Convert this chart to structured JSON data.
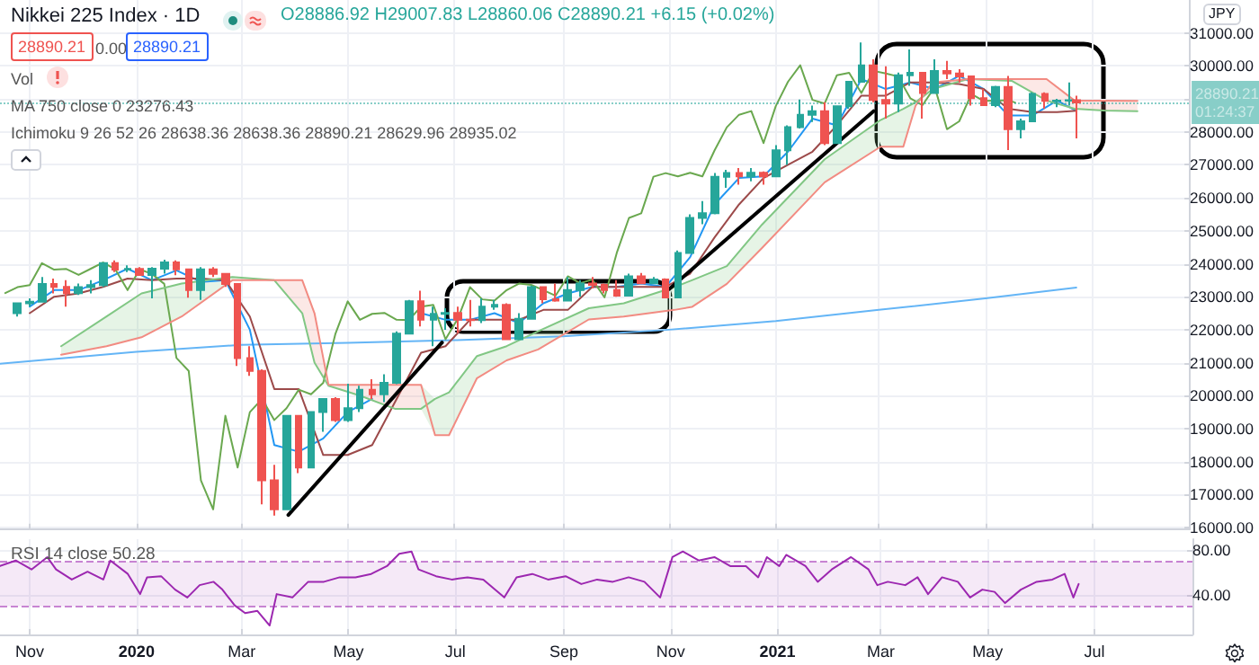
{
  "chart_data": [
    {
      "type": "candlestick",
      "title": "Nikkei 225 Index · 1D",
      "ylabel": "JPY",
      "xlim": [
        "2019-10-15",
        "2021-08-26"
      ],
      "ylim": [
        15950,
        32000
      ],
      "tick_labels": "y",
      "grid": true,
      "xticks": [
        {
          "value": "2019-11-01",
          "label": null
        },
        {
          "value": "2020-01-01",
          "label": null
        },
        {
          "value": "2020-03-01",
          "label": null
        },
        {
          "value": "2020-05-01",
          "label": null
        },
        {
          "value": "2020-07-01",
          "label": null
        },
        {
          "value": "2020-09-01",
          "label": null
        },
        {
          "value": "2020-11-01",
          "label": null
        },
        {
          "value": "2021-01-01",
          "label": null
        },
        {
          "value": "2021-03-01",
          "label": null
        },
        {
          "value": "2021-05-01",
          "label": null
        },
        {
          "value": "2021-07-01",
          "label": null
        }
      ],
      "yticks": [
        {
          "value": 16000,
          "label": "16000.00"
        },
        {
          "value": 17000,
          "label": "17000.00"
        },
        {
          "value": 18000,
          "label": "18000.00"
        },
        {
          "value": 19000,
          "label": "19000.00"
        },
        {
          "value": 20000,
          "label": "20000.00"
        },
        {
          "value": 21000,
          "label": "21000.00"
        },
        {
          "value": 22000,
          "label": "22000.00"
        },
        {
          "value": 23000,
          "label": "23000.00"
        },
        {
          "value": 24000,
          "label": "24000.00"
        },
        {
          "value": 25000,
          "label": "25000.00"
        },
        {
          "value": 26000,
          "label": "26000.00"
        },
        {
          "value": 27000,
          "label": "27000.00"
        },
        {
          "value": 28000,
          "label": "28000.00"
        },
        {
          "value": 29000,
          "label": null
        },
        {
          "value": 30000,
          "label": "30000.00"
        },
        {
          "value": 31000,
          "label": "31000.00"
        }
      ],
      "annotations": [
        "O28886.92 H29007.83 L28860.06 C28890.21 +6.15 (+0.02%)",
        "28890.21",
        "0.00",
        "28890.21",
        "Vol",
        "MA 750 close 0 23276.43",
        "Ichimoku 9 26 52 26 28638.36 28638.36 28890.21 28629.96 28935.02",
        "01:24:37"
      ],
      "ref_lines": [
        {
          "axis": "y",
          "value": 28890.21,
          "label": "28890.21",
          "color": "#26a69a",
          "line_style": "dotted"
        }
      ],
      "x": [
        "2019-10-25",
        "2019-11-01",
        "2019-11-08",
        "2019-11-15",
        "2019-11-22",
        "2019-11-29",
        "2019-12-06",
        "2019-12-13",
        "2019-12-20",
        "2019-12-27",
        "2020-01-03",
        "2020-01-10",
        "2020-01-17",
        "2020-01-24",
        "2020-01-31",
        "2020-02-07",
        "2020-02-14",
        "2020-02-21",
        "2020-02-28",
        "2020-03-06",
        "2020-03-13",
        "2020-03-20",
        "2020-03-27",
        "2020-04-03",
        "2020-04-10",
        "2020-04-17",
        "2020-04-24",
        "2020-05-01",
        "2020-05-08",
        "2020-05-15",
        "2020-05-22",
        "2020-05-29",
        "2020-06-05",
        "2020-06-12",
        "2020-06-19",
        "2020-06-26",
        "2020-07-03",
        "2020-07-10",
        "2020-07-17",
        "2020-07-24",
        "2020-07-31",
        "2020-08-07",
        "2020-08-14",
        "2020-08-21",
        "2020-08-28",
        "2020-09-04",
        "2020-09-11",
        "2020-09-18",
        "2020-09-25",
        "2020-10-02",
        "2020-10-09",
        "2020-10-16",
        "2020-10-23",
        "2020-10-30",
        "2020-11-06",
        "2020-11-13",
        "2020-11-20",
        "2020-11-27",
        "2020-12-04",
        "2020-12-11",
        "2020-12-18",
        "2020-12-25",
        "2021-01-01",
        "2021-01-08",
        "2021-01-15",
        "2021-01-22",
        "2021-01-29",
        "2021-02-05",
        "2021-02-12",
        "2021-02-19",
        "2021-02-26",
        "2021-03-05",
        "2021-03-12",
        "2021-03-19",
        "2021-03-26",
        "2021-04-02",
        "2021-04-09",
        "2021-04-16",
        "2021-04-23",
        "2021-04-30",
        "2021-05-07",
        "2021-05-14",
        "2021-05-21",
        "2021-05-28",
        "2021-06-04",
        "2021-06-11",
        "2021-06-18",
        "2021-06-22"
      ],
      "ohlc": [
        [
          22500,
          22800,
          22400,
          22800
        ],
        [
          22800,
          22950,
          22700,
          22850
        ],
        [
          22850,
          23600,
          22850,
          23390
        ],
        [
          23390,
          23550,
          23100,
          23300
        ],
        [
          23300,
          23500,
          22700,
          23110
        ],
        [
          23110,
          23400,
          23050,
          23290
        ],
        [
          23290,
          23500,
          23100,
          23350
        ],
        [
          23350,
          24050,
          23300,
          24020
        ],
        [
          24020,
          24100,
          23750,
          23820
        ],
        [
          23820,
          23950,
          23750,
          23840
        ],
        [
          23840,
          23900,
          23650,
          23660
        ],
        [
          23660,
          23900,
          22950,
          23850
        ],
        [
          23850,
          24120,
          23700,
          24040
        ],
        [
          24040,
          24100,
          23650,
          23830
        ],
        [
          23830,
          23850,
          22970,
          23200
        ],
        [
          23200,
          23900,
          22900,
          23830
        ],
        [
          23830,
          23900,
          23600,
          23690
        ],
        [
          23690,
          23700,
          23300,
          23390
        ],
        [
          23390,
          23400,
          20900,
          21140
        ],
        [
          21140,
          21500,
          20600,
          20750
        ],
        [
          20750,
          20800,
          16700,
          17430
        ],
        [
          17430,
          17900,
          16360,
          16550
        ],
        [
          16550,
          19400,
          16550,
          19390
        ],
        [
          19390,
          19400,
          17650,
          17820
        ],
        [
          17820,
          19500,
          17820,
          19500
        ],
        [
          19500,
          19900,
          18900,
          19900
        ],
        [
          19900,
          19950,
          19200,
          19260
        ],
        [
          19260,
          20360,
          19200,
          19620
        ],
        [
          19620,
          20300,
          19500,
          20180
        ],
        [
          20180,
          20500,
          19900,
          20040
        ],
        [
          20040,
          20650,
          19800,
          20390
        ],
        [
          20390,
          21950,
          20350,
          21880
        ],
        [
          21880,
          22900,
          21880,
          22860
        ],
        [
          22860,
          23180,
          22100,
          22300
        ],
        [
          22300,
          22700,
          21500,
          22480
        ],
        [
          22480,
          22650,
          22000,
          22510
        ],
        [
          22510,
          22700,
          21900,
          22300
        ],
        [
          22300,
          22900,
          22100,
          22290
        ],
        [
          22290,
          22950,
          22200,
          22700
        ],
        [
          22700,
          22900,
          22600,
          22750
        ],
        [
          22750,
          22800,
          21700,
          21710
        ],
        [
          21710,
          22500,
          21700,
          22330
        ],
        [
          22330,
          23340,
          22300,
          23290
        ],
        [
          23290,
          23300,
          22800,
          22920
        ],
        [
          22920,
          23400,
          22850,
          22880
        ],
        [
          22880,
          23600,
          22880,
          23200
        ],
        [
          23200,
          23500,
          23000,
          23400
        ],
        [
          23400,
          23600,
          23250,
          23360
        ],
        [
          23360,
          23400,
          23100,
          23200
        ],
        [
          23200,
          23500,
          23000,
          23030
        ],
        [
          23030,
          23700,
          23030,
          23620
        ],
        [
          23620,
          23720,
          23400,
          23410
        ],
        [
          23410,
          23600,
          23400,
          23520
        ],
        [
          23520,
          23560,
          22950,
          22980
        ],
        [
          22980,
          24400,
          22950,
          24330
        ],
        [
          24330,
          25500,
          24300,
          25390
        ],
        [
          25390,
          25900,
          25200,
          25530
        ],
        [
          25530,
          26750,
          25500,
          26640
        ],
        [
          26640,
          26850,
          26300,
          26750
        ],
        [
          26750,
          26900,
          26400,
          26650
        ],
        [
          26650,
          26900,
          26500,
          26760
        ],
        [
          26760,
          26800,
          26400,
          26650
        ],
        [
          26650,
          27600,
          26650,
          27440
        ],
        [
          27440,
          28200,
          27000,
          28140
        ],
        [
          28140,
          28980,
          28100,
          28520
        ],
        [
          28520,
          28800,
          28300,
          28630
        ],
        [
          28630,
          28900,
          27600,
          27660
        ],
        [
          27660,
          28800,
          27660,
          28780
        ],
        [
          28780,
          29550,
          28700,
          29520
        ],
        [
          29520,
          30710,
          29500,
          30020
        ],
        [
          30020,
          30200,
          28900,
          28970
        ],
        [
          28970,
          29990,
          28400,
          28860
        ],
        [
          28860,
          29800,
          28600,
          29720
        ],
        [
          29720,
          30500,
          29400,
          29790
        ],
        [
          29790,
          29800,
          28400,
          29180
        ],
        [
          29180,
          30200,
          29150,
          29850
        ],
        [
          29850,
          30150,
          29600,
          29770
        ],
        [
          29770,
          29900,
          29500,
          29680
        ],
        [
          29680,
          29700,
          28800,
          29020
        ],
        [
          29020,
          29300,
          28800,
          28810
        ],
        [
          28810,
          29400,
          28750,
          29360
        ],
        [
          29360,
          29700,
          27450,
          28080
        ],
        [
          28080,
          28400,
          27800,
          28320
        ],
        [
          28320,
          29200,
          28300,
          29150
        ],
        [
          29150,
          29200,
          28700,
          28940
        ],
        [
          28940,
          29000,
          28750,
          28950
        ],
        [
          28950,
          29500,
          28800,
          28960
        ],
        [
          28960,
          29100,
          27800,
          28890.21
        ]
      ],
      "series": [
        {
          "type": "line",
          "color": "#64b5f6",
          "x": [
            "2019-10-15",
            "2020-01-01",
            "2020-03-01",
            "2020-05-01",
            "2020-07-01",
            "2020-09-01",
            "2020-11-01",
            "2021-01-01",
            "2021-03-01",
            "2021-05-01",
            "2021-06-22"
          ],
          "values": [
            20970,
            21330,
            21540,
            21600,
            21680,
            21800,
            22000,
            22260,
            22600,
            22950,
            23280
          ]
        },
        {
          "type": "line",
          "color": "#2196f3",
          "x": [
            "2019-11-01",
            "2019-11-15",
            "2019-11-29",
            "2019-12-13",
            "2019-12-27",
            "2020-01-10",
            "2020-01-24",
            "2020-02-07",
            "2020-02-21",
            "2020-03-06",
            "2020-03-20",
            "2020-04-03",
            "2020-04-17",
            "2020-05-01",
            "2020-05-15",
            "2020-05-29",
            "2020-06-12",
            "2020-06-26",
            "2020-07-10",
            "2020-07-24",
            "2020-08-07",
            "2020-08-21",
            "2020-09-04",
            "2020-09-18",
            "2020-10-02",
            "2020-10-16",
            "2020-10-30",
            "2020-11-13",
            "2020-11-27",
            "2020-12-11",
            "2020-12-25",
            "2021-01-08",
            "2021-01-22",
            "2021-02-05",
            "2021-02-19",
            "2021-03-05",
            "2021-03-19",
            "2021-04-02",
            "2021-04-16",
            "2021-04-30",
            "2021-05-14",
            "2021-05-28",
            "2021-06-11",
            "2021-06-22"
          ],
          "values": [
            22700,
            23200,
            23200,
            23500,
            23850,
            23500,
            23800,
            23450,
            23500,
            22000,
            18500,
            18300,
            18700,
            19500,
            19900,
            null,
            22500,
            22300,
            22300,
            22500,
            22200,
            22800,
            23100,
            23300,
            23300,
            23400,
            23300,
            24200,
            25800,
            26600,
            26650,
            27400,
            28400,
            28200,
            29600,
            29300,
            29500,
            29300,
            29700,
            29300,
            28500,
            28500,
            28950,
            28640
          ]
        },
        {
          "type": "line",
          "color": "#9c4a4a",
          "x": [
            "2019-11-01",
            "2019-11-15",
            "2019-11-29",
            "2019-12-13",
            "2019-12-27",
            "2020-01-10",
            "2020-01-24",
            "2020-02-07",
            "2020-02-21",
            "2020-03-06",
            "2020-03-20",
            "2020-04-03",
            "2020-04-17",
            "2020-05-01",
            "2020-05-15",
            "2020-05-29",
            "2020-06-12",
            "2020-06-26",
            "2020-07-10",
            "2020-07-24",
            "2020-08-07",
            "2020-08-21",
            "2020-09-04",
            "2020-09-18",
            "2020-10-02",
            "2020-10-16",
            "2020-10-30",
            "2020-11-13",
            "2020-11-27",
            "2020-12-11",
            "2020-12-25",
            "2021-01-08",
            "2021-01-22",
            "2021-02-05",
            "2021-02-19",
            "2021-03-05",
            "2021-03-19",
            "2021-04-02",
            "2021-04-16",
            "2021-04-30",
            "2021-05-14",
            "2021-05-28",
            "2021-06-11",
            "2021-06-22"
          ],
          "values": [
            22500,
            23000,
            23100,
            23300,
            23550,
            23500,
            23550,
            23550,
            23500,
            22400,
            20200,
            20200,
            18200,
            18200,
            18500,
            19900,
            21300,
            21500,
            22300,
            22300,
            22300,
            22600,
            22600,
            23300,
            23300,
            23300,
            23300,
            23700,
            24800,
            25800,
            26600,
            27000,
            27400,
            28200,
            29100,
            29100,
            29500,
            29500,
            29450,
            29300,
            28700,
            28600,
            28600,
            28640
          ]
        },
        {
          "type": "line",
          "color": "#6aa84f",
          "x": [
            "2019-10-18",
            "2019-10-25",
            "2019-11-01",
            "2019-11-08",
            "2019-11-15",
            "2019-11-22",
            "2019-11-29",
            "2019-12-06",
            "2019-12-13",
            "2019-12-20",
            "2019-12-27",
            "2020-01-03",
            "2020-01-10",
            "2020-01-17",
            "2020-01-24",
            "2020-01-31",
            "2020-02-07",
            "2020-02-14",
            "2020-02-21",
            "2020-02-28",
            "2020-03-06",
            "2020-03-13",
            "2020-03-20",
            "2020-03-27",
            "2020-04-03",
            "2020-04-10",
            "2020-04-17",
            "2020-04-24",
            "2020-05-01",
            "2020-05-08",
            "2020-05-15",
            "2020-05-22",
            "2020-05-29",
            "2020-06-05",
            "2020-06-12",
            "2020-06-19",
            "2020-06-26",
            "2020-07-03",
            "2020-07-10",
            "2020-07-17",
            "2020-07-24",
            "2020-07-31",
            "2020-08-07",
            "2020-08-14",
            "2020-08-21",
            "2020-08-28",
            "2020-09-04",
            "2020-09-11",
            "2020-09-18",
            "2020-09-25",
            "2020-10-02",
            "2020-10-09",
            "2020-10-16",
            "2020-10-23",
            "2020-10-30",
            "2020-11-06",
            "2020-11-13",
            "2020-11-20",
            "2020-11-27",
            "2020-12-04",
            "2020-12-11",
            "2020-12-18",
            "2020-12-25",
            "2021-01-01",
            "2021-01-08",
            "2021-01-15",
            "2021-01-22",
            "2021-01-29",
            "2021-02-05",
            "2021-02-12",
            "2021-02-19",
            "2021-02-26",
            "2021-03-05",
            "2021-03-12",
            "2021-03-19",
            "2021-03-26",
            "2021-04-02",
            "2021-04-09",
            "2021-04-16",
            "2021-04-23",
            "2021-04-30",
            "2021-05-07",
            "2021-05-14",
            "2021-05-18"
          ],
          "values": [
            23110,
            23290,
            23350,
            24020,
            23820,
            23840,
            23660,
            23850,
            24040,
            23830,
            23200,
            23830,
            23690,
            23390,
            21140,
            20750,
            17430,
            16550,
            19390,
            17820,
            19500,
            19900,
            19260,
            19620,
            20180,
            20040,
            20390,
            21880,
            22860,
            22300,
            22480,
            22510,
            22300,
            22290,
            22700,
            22750,
            21710,
            22330,
            23290,
            22920,
            22880,
            23200,
            23400,
            23360,
            23200,
            23030,
            23620,
            23410,
            23520,
            22980,
            24330,
            25390,
            25530,
            26640,
            26750,
            26650,
            26760,
            26650,
            27440,
            28140,
            28520,
            28630,
            27660,
            28780,
            29520,
            30020,
            28970,
            28860,
            29720,
            29790,
            29180,
            29850,
            29770,
            29680,
            29020,
            28810,
            29360,
            28080,
            28320,
            29150,
            28940,
            28950,
            28960,
            28890
          ]
        },
        {
          "type": "line",
          "color": "#81c784",
          "x": [
            "2019-11-19",
            "2019-12-15",
            "2020-01-04",
            "2020-01-27",
            "2020-02-25",
            "2020-03-20",
            "2020-04-05",
            "2020-04-12",
            "2020-04-20",
            "2020-05-08",
            "2020-05-28",
            "2020-06-12",
            "2020-06-20",
            "2020-06-28",
            "2020-07-14",
            "2020-07-31",
            "2020-08-18",
            "2020-09-16",
            "2020-10-06",
            "2020-11-04",
            "2020-11-14",
            "2020-12-04",
            "2020-12-24",
            "2021-01-29",
            "2021-03-02",
            "2021-03-15",
            "2021-03-22",
            "2021-04-01",
            "2021-04-21",
            "2021-05-16",
            "2021-06-05",
            "2021-06-21",
            "2021-07-08",
            "2021-07-27"
          ],
          "values": [
            21500,
            22400,
            23100,
            23400,
            23600,
            23500,
            22500,
            21000,
            20300,
            20000,
            19600,
            19600,
            19900,
            20100,
            21200,
            21500,
            21950,
            22650,
            22800,
            23290,
            23500,
            23930,
            25180,
            27170,
            28360,
            28700,
            28900,
            29300,
            29600,
            29550,
            28950,
            28700,
            28650,
            28630
          ],
          "lower": [
            21240,
            21500,
            21770,
            22400,
            23500,
            23500,
            null,
            null,
            null,
            null,
            null,
            19600,
            18800,
            18800,
            20530,
            21070,
            21400,
            22310,
            22400,
            22600,
            22690,
            23390,
            24470,
            26470,
            27550,
            27550,
            28790,
            null,
            null,
            null,
            null,
            null,
            null,
            null
          ],
          "upper": [
            21500,
            22400,
            23100,
            23400,
            23600,
            23500,
            null,
            null,
            null,
            null,
            null,
            20330,
            19900,
            20100,
            21200,
            21500,
            21950,
            22650,
            22800,
            23290,
            23500,
            23930,
            25180,
            27170,
            28360,
            28700,
            28900,
            null,
            null,
            null,
            null,
            null,
            null,
            null
          ]
        },
        {
          "type": "line",
          "color": "#f28b82",
          "x": [
            "2019-11-19",
            "2019-12-15",
            "2020-01-04",
            "2020-01-27",
            "2020-02-25",
            "2020-03-20",
            "2020-04-05",
            "2020-04-12",
            "2020-04-20",
            "2020-05-08",
            "2020-05-28",
            "2020-06-12",
            "2020-06-20",
            "2020-06-28",
            "2020-07-14",
            "2020-07-31",
            "2020-08-18",
            "2020-09-16",
            "2020-10-06",
            "2020-11-04",
            "2020-11-14",
            "2020-12-04",
            "2020-12-24",
            "2021-01-29",
            "2021-03-02",
            "2021-03-15",
            "2021-03-22",
            "2021-04-01",
            "2021-04-21",
            "2021-05-16",
            "2021-06-05",
            "2021-06-21",
            "2021-07-08",
            "2021-07-27"
          ],
          "values": [
            21240,
            21500,
            21770,
            22400,
            23500,
            23500,
            23500,
            22500,
            20330,
            20330,
            20330,
            20330,
            18800,
            18800,
            20530,
            21070,
            21400,
            22310,
            22400,
            22600,
            22690,
            23390,
            24470,
            26470,
            27550,
            27550,
            28790,
            29500,
            29600,
            29600,
            29600,
            28950,
            28950,
            28940
          ],
          "lower": [
            null,
            null,
            null,
            null,
            null,
            23500,
            22500,
            21000,
            20300,
            20000,
            19600,
            19600,
            null,
            null,
            null,
            null,
            null,
            null,
            null,
            null,
            null,
            null,
            null,
            null,
            null,
            null,
            28790,
            29300,
            29600,
            29550,
            28950,
            28700,
            28650,
            28630
          ],
          "upper": [
            null,
            null,
            null,
            null,
            null,
            23500,
            23500,
            22500,
            20330,
            20330,
            20330,
            20330,
            null,
            null,
            null,
            null,
            null,
            null,
            null,
            null,
            null,
            null,
            null,
            null,
            null,
            null,
            28900,
            29500,
            29600,
            29600,
            29600,
            28950,
            28950,
            28940
          ]
        },
        {
          "type": "line",
          "color": "#000000",
          "x": [
            "2020-03-28",
            "2020-06-24"
          ],
          "values": [
            16380,
            21610
          ]
        },
        {
          "type": "line",
          "color": "#000000",
          "x": [
            "2020-11-01",
            "2021-02-26"
          ],
          "values": [
            23230,
            28630
          ]
        }
      ]
    },
    {
      "type": "line",
      "title": "RSI 14 close 50.28",
      "xlim": [
        "2019-10-15",
        "2021-08-26"
      ],
      "ylim": [
        5,
        90
      ],
      "grid": true,
      "color": "#9c27b0",
      "xticks": [
        {
          "value": "2019-11-01",
          "label": "Nov"
        },
        {
          "value": "2020-01-01",
          "label": "2020"
        },
        {
          "value": "2020-03-01",
          "label": "Mar"
        },
        {
          "value": "2020-05-01",
          "label": "May"
        },
        {
          "value": "2020-07-01",
          "label": "Jul"
        },
        {
          "value": "2020-09-01",
          "label": "Sep"
        },
        {
          "value": "2020-11-01",
          "label": "Nov"
        },
        {
          "value": "2021-01-01",
          "label": "2021"
        },
        {
          "value": "2021-03-01",
          "label": "Mar"
        },
        {
          "value": "2021-05-01",
          "label": "May"
        },
        {
          "value": "2021-07-01",
          "label": "Jul"
        }
      ],
      "yticks": [
        {
          "value": 40,
          "label": "40.00"
        },
        {
          "value": 80,
          "label": "80.00"
        }
      ],
      "bands": [
        {
          "axis": "y",
          "from": 30,
          "to": 70,
          "color": "#9c27b0"
        }
      ],
      "ref_lines": [
        {
          "axis": "y",
          "value": 70,
          "color": "#9c27b0",
          "line_style": "dashed"
        },
        {
          "axis": "y",
          "value": 30,
          "color": "#9c27b0",
          "line_style": "dashed"
        }
      ],
      "x": [
        "2019-10-15",
        "2019-10-24",
        "2019-11-02",
        "2019-11-11",
        "2019-11-16",
        "2019-11-25",
        "2019-12-04",
        "2019-12-13",
        "2019-12-17",
        "2019-12-27",
        "2020-01-03",
        "2020-01-07",
        "2020-01-15",
        "2020-01-23",
        "2020-01-30",
        "2020-02-06",
        "2020-02-14",
        "2020-02-19",
        "2020-02-26",
        "2020-03-03",
        "2020-03-10",
        "2020-03-17",
        "2020-03-21",
        "2020-03-30",
        "2020-04-08",
        "2020-04-17",
        "2020-04-26",
        "2020-05-05",
        "2020-05-14",
        "2020-05-23",
        "2020-05-30",
        "2020-06-06",
        "2020-06-10",
        "2020-06-20",
        "2020-06-29",
        "2020-07-08",
        "2020-07-17",
        "2020-07-29",
        "2020-08-05",
        "2020-08-14",
        "2020-08-23",
        "2020-09-02",
        "2020-09-11",
        "2020-09-20",
        "2020-09-29",
        "2020-10-08",
        "2020-10-17",
        "2020-10-26",
        "2020-11-02",
        "2020-11-08",
        "2020-11-17",
        "2020-11-26",
        "2020-12-05",
        "2020-12-14",
        "2020-12-21",
        "2020-12-26",
        "2021-01-02",
        "2021-01-06",
        "2021-01-17",
        "2021-01-24",
        "2021-02-01",
        "2021-02-12",
        "2021-02-22",
        "2021-02-27",
        "2021-03-05",
        "2021-03-15",
        "2021-03-22",
        "2021-03-28",
        "2021-04-05",
        "2021-04-14",
        "2021-04-21",
        "2021-04-28",
        "2021-05-05",
        "2021-05-11",
        "2021-05-20",
        "2021-05-29",
        "2021-06-07",
        "2021-06-14",
        "2021-06-19",
        "2021-06-22"
      ],
      "values": [
        66,
        71,
        63,
        74,
        63,
        54,
        61,
        54,
        71,
        59,
        41,
        56,
        57,
        45,
        38,
        49,
        52,
        45,
        31,
        24,
        26,
        13,
        41,
        38,
        52,
        52,
        56,
        56,
        59,
        66,
        77,
        79,
        63,
        57,
        54,
        56,
        54,
        38,
        56,
        59,
        54,
        57,
        50,
        54,
        52,
        56,
        52,
        38,
        74,
        79,
        71,
        74,
        66,
        66,
        56,
        74,
        66,
        76,
        66,
        52,
        63,
        74,
        63,
        49,
        52,
        49,
        56,
        41,
        56,
        52,
        38,
        45,
        43,
        33,
        45,
        52,
        54,
        59,
        38,
        50
      ]
    }
  ]
}
